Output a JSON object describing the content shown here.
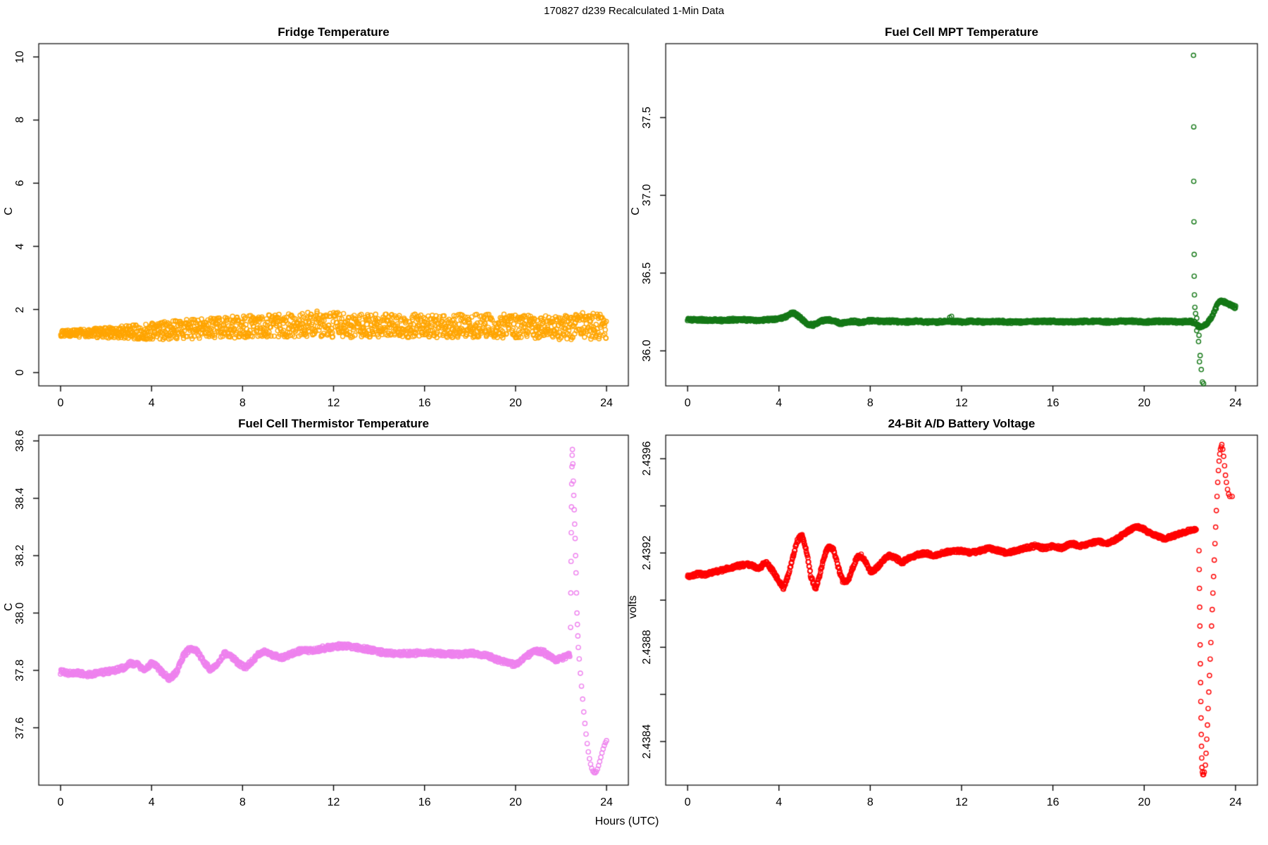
{
  "page_title": "170827   d239   Recalculated 1-Min Data",
  "x_axis": {
    "label": "Hours (UTC)",
    "ticks": [
      0,
      4,
      8,
      12,
      16,
      20,
      24
    ],
    "range": [
      -0.96,
      24.96
    ]
  },
  "style": {
    "background": "#ffffff",
    "axis_color": "#000000",
    "text_color": "#000000"
  },
  "chart_data": [
    {
      "type": "scatter",
      "title": "Fridge Temperature",
      "ylabel": "C",
      "marker": "open-circle",
      "color": "#FFA500",
      "ylim": [
        -0.42,
        10.42
      ],
      "yticks": [
        0,
        2,
        4,
        6,
        8,
        10
      ],
      "ytick_labels": [
        "0",
        "2",
        "4",
        "6",
        "8",
        "10"
      ],
      "cloud": {
        "samples_per_hour": 60,
        "x": [
          0,
          1,
          2,
          3,
          4,
          5,
          6,
          7,
          8,
          9,
          10,
          11,
          12,
          13,
          14,
          15,
          16,
          17,
          18,
          19,
          20,
          21,
          22,
          22.5,
          23,
          23.5,
          24
        ],
        "ymin": [
          1.15,
          1.12,
          1.1,
          1.08,
          1.04,
          1.05,
          1.07,
          1.09,
          1.08,
          1.1,
          1.12,
          1.14,
          1.12,
          1.1,
          1.12,
          1.1,
          1.12,
          1.1,
          1.12,
          1.1,
          1.08,
          1.06,
          1.03,
          1.05,
          1.08,
          1.05,
          1.03
        ],
        "ymax": [
          1.33,
          1.38,
          1.44,
          1.51,
          1.58,
          1.65,
          1.7,
          1.76,
          1.8,
          1.86,
          1.9,
          1.95,
          1.93,
          1.88,
          1.86,
          1.86,
          1.85,
          1.86,
          1.85,
          1.87,
          1.85,
          1.83,
          1.8,
          1.87,
          1.9,
          1.91,
          1.88
        ]
      }
    },
    {
      "type": "scatter",
      "title": "Fuel Cell MPT Temperature",
      "ylabel": "C",
      "marker": "open-circle",
      "color": "#157817",
      "ylim": [
        35.775,
        37.975
      ],
      "yticks": [
        36.0,
        36.5,
        37.0,
        37.5
      ],
      "ytick_labels": [
        "36.0",
        "36.5",
        "37.0",
        "37.5"
      ],
      "band": {
        "jitter": 0.009,
        "x": [
          0,
          0.5,
          1,
          1.5,
          2,
          2.5,
          3,
          3.5,
          4,
          4.3,
          4.6,
          4.9,
          5.2,
          5.5,
          5.8,
          6.1,
          6.4,
          6.7,
          7,
          7.3,
          7.6,
          8,
          8.5,
          9,
          9.5,
          10,
          10.5,
          11,
          11.5,
          12,
          12.5,
          13,
          13.5,
          14,
          14.5,
          15,
          15.5,
          16,
          16.5,
          17,
          17.5,
          18,
          18.5,
          19,
          19.5,
          20,
          20.5,
          21,
          21.5,
          22,
          22.2,
          22.35,
          22.5,
          22.65,
          22.8,
          23,
          23.2,
          23.35,
          23.5,
          23.7,
          23.85,
          24
        ],
        "y": [
          36.2,
          36.2,
          36.198,
          36.196,
          36.2,
          36.2,
          36.196,
          36.2,
          36.205,
          36.22,
          36.245,
          36.218,
          36.175,
          36.165,
          36.19,
          36.2,
          36.196,
          36.175,
          36.186,
          36.19,
          36.18,
          36.195,
          36.19,
          36.19,
          36.186,
          36.19,
          36.186,
          36.186,
          36.19,
          36.186,
          36.19,
          36.186,
          36.19,
          36.186,
          36.186,
          36.19,
          36.19,
          36.19,
          36.186,
          36.186,
          36.19,
          36.19,
          36.186,
          36.19,
          36.19,
          36.186,
          36.19,
          36.19,
          36.186,
          36.19,
          36.182,
          36.16,
          36.15,
          36.165,
          36.185,
          36.23,
          36.295,
          36.32,
          36.315,
          36.3,
          36.29,
          36.28
        ]
      },
      "outliers": [
        [
          11.48,
          36.215
        ],
        [
          11.56,
          36.222
        ],
        [
          22.16,
          37.9
        ],
        [
          22.17,
          37.44
        ],
        [
          22.17,
          37.09
        ],
        [
          22.18,
          36.83
        ],
        [
          22.19,
          36.62
        ],
        [
          22.19,
          36.48
        ],
        [
          22.2,
          36.36
        ],
        [
          22.22,
          36.28
        ],
        [
          22.25,
          36.24
        ],
        [
          22.3,
          36.21
        ],
        [
          22.35,
          36.17
        ],
        [
          22.3,
          36.13
        ],
        [
          22.4,
          36.1
        ],
        [
          22.38,
          36.06
        ],
        [
          22.45,
          35.97
        ],
        [
          22.42,
          35.93
        ],
        [
          22.5,
          35.88
        ],
        [
          22.55,
          35.8
        ],
        [
          22.6,
          35.79
        ]
      ]
    },
    {
      "type": "scatter",
      "title": "Fuel Cell Thermistor Temperature",
      "ylabel": "C",
      "marker": "open-circle",
      "color": "#EE82EE",
      "ylim": [
        37.4,
        38.62
      ],
      "yticks": [
        37.6,
        37.8,
        38.0,
        38.2,
        38.4,
        38.6
      ],
      "ytick_labels": [
        "37.6",
        "37.8",
        "38.0",
        "38.2",
        "38.4",
        "38.6"
      ],
      "band": {
        "jitter": 0.008,
        "x": [
          0,
          0.4,
          0.8,
          1.2,
          1.6,
          2,
          2.4,
          2.8,
          3.1,
          3.4,
          3.7,
          4,
          4.2,
          4.5,
          4.8,
          5.1,
          5.4,
          5.7,
          6,
          6.3,
          6.6,
          6.9,
          7.2,
          7.5,
          7.8,
          8.1,
          8.4,
          8.7,
          9,
          9.4,
          9.8,
          10.2,
          10.6,
          11,
          11.4,
          11.8,
          12.2,
          12.6,
          13,
          13.4,
          13.8,
          14.2,
          14.6,
          15,
          15.5,
          16,
          16.5,
          17,
          17.5,
          18,
          18.4,
          18.8,
          19.1,
          19.4,
          19.7,
          20,
          20.3,
          20.6,
          20.9,
          21.2,
          21.5,
          21.8,
          22.1,
          22.4
        ],
        "y": [
          37.795,
          37.79,
          37.79,
          37.785,
          37.79,
          37.795,
          37.8,
          37.81,
          37.825,
          37.82,
          37.8,
          37.825,
          37.815,
          37.79,
          37.77,
          37.795,
          37.85,
          37.88,
          37.865,
          37.83,
          37.8,
          37.825,
          37.86,
          37.85,
          37.825,
          37.81,
          37.83,
          37.855,
          37.865,
          37.85,
          37.845,
          37.86,
          37.87,
          37.87,
          37.875,
          37.88,
          37.885,
          37.885,
          37.88,
          37.875,
          37.868,
          37.862,
          37.86,
          37.858,
          37.86,
          37.862,
          37.86,
          37.858,
          37.856,
          37.86,
          37.857,
          37.85,
          37.84,
          37.832,
          37.825,
          37.82,
          37.838,
          37.855,
          37.868,
          37.865,
          37.85,
          37.836,
          37.845,
          37.856
        ]
      },
      "trail": [
        [
          22.42,
          37.95
        ],
        [
          22.43,
          38.07
        ],
        [
          22.44,
          38.18
        ],
        [
          22.45,
          38.28
        ],
        [
          22.46,
          38.37
        ],
        [
          22.47,
          38.45
        ],
        [
          22.48,
          38.51
        ],
        [
          22.49,
          38.55
        ],
        [
          22.5,
          38.57
        ],
        [
          22.52,
          38.52
        ],
        [
          22.54,
          38.46
        ],
        [
          22.56,
          38.41
        ],
        [
          22.58,
          38.36
        ],
        [
          22.6,
          38.31
        ],
        [
          22.62,
          38.26
        ],
        [
          22.64,
          38.2
        ],
        [
          22.66,
          38.14
        ],
        [
          22.68,
          38.07
        ],
        [
          22.7,
          38.0
        ],
        [
          22.72,
          37.96
        ],
        [
          22.74,
          37.92
        ],
        [
          22.76,
          37.88
        ],
        [
          22.8,
          37.84
        ],
        [
          22.85,
          37.79
        ],
        [
          22.9,
          37.745
        ],
        [
          22.95,
          37.7
        ],
        [
          23.0,
          37.655
        ],
        [
          23.05,
          37.615
        ],
        [
          23.1,
          37.578
        ],
        [
          23.15,
          37.545
        ],
        [
          23.2,
          37.516
        ],
        [
          23.25,
          37.492
        ],
        [
          23.3,
          37.473
        ],
        [
          23.35,
          37.458
        ],
        [
          23.4,
          37.449
        ],
        [
          23.45,
          37.444
        ],
        [
          23.5,
          37.443
        ],
        [
          23.55,
          37.447
        ],
        [
          23.6,
          37.456
        ],
        [
          23.65,
          37.468
        ],
        [
          23.7,
          37.482
        ],
        [
          23.75,
          37.497
        ],
        [
          23.8,
          37.512
        ],
        [
          23.85,
          37.526
        ],
        [
          23.9,
          37.538
        ],
        [
          23.95,
          37.548
        ],
        [
          24.0,
          37.555
        ]
      ]
    },
    {
      "type": "scatter",
      "title": "24-Bit A/D Battery Voltage",
      "ylabel": "volts",
      "marker": "open-circle",
      "color": "#FF0000",
      "ylim": [
        2.438215,
        2.4397
      ],
      "yticks": [
        2.4382,
        2.4384,
        2.4386,
        2.4388,
        2.439,
        2.4392,
        2.4394,
        2.4396
      ],
      "ytick_labels": [
        "",
        "2.4384",
        "",
        "2.4388",
        "",
        "2.4392",
        "",
        "2.4396"
      ],
      "band": {
        "jitter": 7.8e-06,
        "x": [
          0,
          0.4,
          0.8,
          1.2,
          1.6,
          2,
          2.4,
          2.8,
          3.1,
          3.4,
          3.7,
          4.0,
          4.2,
          4.4,
          4.6,
          4.8,
          5.0,
          5.2,
          5.4,
          5.6,
          5.8,
          6.0,
          6.2,
          6.4,
          6.6,
          6.8,
          7.0,
          7.2,
          7.4,
          7.6,
          7.8,
          8.0,
          8.2,
          8.5,
          8.8,
          9.1,
          9.4,
          9.7,
          10,
          10.4,
          10.8,
          11.2,
          11.6,
          12,
          12.4,
          12.8,
          13.2,
          13.6,
          14,
          14.4,
          14.8,
          15.2,
          15.6,
          16,
          16.4,
          16.8,
          17.2,
          17.6,
          18,
          18.4,
          18.8,
          19.1,
          19.4,
          19.7,
          20,
          20.3,
          20.6,
          20.9,
          21.2,
          21.5,
          21.8,
          22.1,
          22.3
        ],
        "y": [
          2.4391,
          2.43911,
          2.43911,
          2.43912,
          2.43913,
          2.43914,
          2.43915,
          2.43915,
          2.43913,
          2.43916,
          2.43913,
          2.43908,
          2.43905,
          2.4391,
          2.43918,
          2.43925,
          2.43928,
          2.43921,
          2.4391,
          2.43905,
          2.43911,
          2.43919,
          2.43923,
          2.43921,
          2.43914,
          2.43908,
          2.43908,
          2.43913,
          2.43918,
          2.43919,
          2.43916,
          2.43912,
          2.43913,
          2.43916,
          2.43919,
          2.43918,
          2.43916,
          2.43918,
          2.43919,
          2.4392,
          2.43919,
          2.4392,
          2.43921,
          2.43921,
          2.4392,
          2.43921,
          2.43922,
          2.43921,
          2.4392,
          2.43921,
          2.43922,
          2.43923,
          2.43922,
          2.43923,
          2.43922,
          2.43924,
          2.43923,
          2.43924,
          2.43925,
          2.43924,
          2.43926,
          2.43928,
          2.4393,
          2.43931,
          2.4393,
          2.43928,
          2.43927,
          2.43926,
          2.43927,
          2.43928,
          2.43929,
          2.4393,
          2.4393
        ]
      },
      "trail": [
        [
          22.4,
          2.43921
        ],
        [
          22.41,
          2.43913
        ],
        [
          22.42,
          2.43905
        ],
        [
          22.43,
          2.43897
        ],
        [
          22.44,
          2.43889
        ],
        [
          22.45,
          2.43881
        ],
        [
          22.46,
          2.43873
        ],
        [
          22.47,
          2.43865
        ],
        [
          22.48,
          2.43857
        ],
        [
          22.49,
          2.4385
        ],
        [
          22.5,
          2.43843
        ],
        [
          22.51,
          2.43838
        ],
        [
          22.52,
          2.43833
        ],
        [
          22.53,
          2.43829
        ],
        [
          22.55,
          2.43827
        ],
        [
          22.57,
          2.43826
        ],
        [
          22.6,
          2.43826
        ],
        [
          22.63,
          2.43827
        ],
        [
          22.68,
          2.4383
        ],
        [
          22.71,
          2.43835
        ],
        [
          22.74,
          2.43841
        ],
        [
          22.77,
          2.43847
        ],
        [
          22.8,
          2.43854
        ],
        [
          22.83,
          2.43861
        ],
        [
          22.86,
          2.43868
        ],
        [
          22.89,
          2.43875
        ],
        [
          22.92,
          2.43882
        ],
        [
          22.95,
          2.43889
        ],
        [
          22.98,
          2.43896
        ],
        [
          23.01,
          2.43903
        ],
        [
          23.04,
          2.4391
        ],
        [
          23.07,
          2.43917
        ],
        [
          23.1,
          2.43924
        ],
        [
          23.13,
          2.43931
        ],
        [
          23.16,
          2.43938
        ],
        [
          23.19,
          2.43944
        ],
        [
          23.22,
          2.4395
        ],
        [
          23.25,
          2.43955
        ],
        [
          23.28,
          2.43959
        ],
        [
          23.31,
          2.43962
        ],
        [
          23.34,
          2.43964
        ],
        [
          23.37,
          2.43965
        ],
        [
          23.4,
          2.43966
        ],
        [
          23.44,
          2.43964
        ],
        [
          23.48,
          2.43961
        ],
        [
          23.52,
          2.43957
        ],
        [
          23.56,
          2.43953
        ],
        [
          23.6,
          2.4395
        ],
        [
          23.65,
          2.43947
        ],
        [
          23.7,
          2.43945
        ],
        [
          23.75,
          2.43944
        ],
        [
          23.85,
          2.43944
        ]
      ]
    }
  ]
}
